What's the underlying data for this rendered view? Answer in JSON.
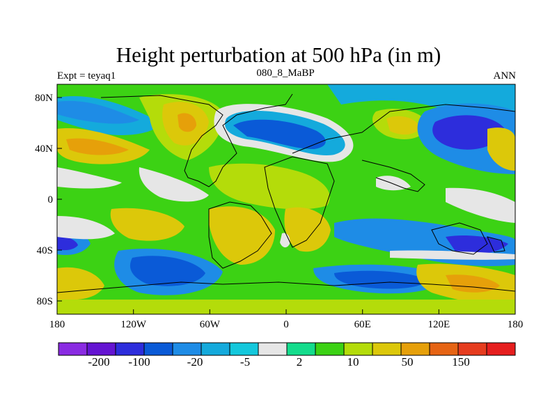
{
  "title": "Height perturbation at 500 hPa (in m)",
  "subtitle_left": "Expt = teyaq1",
  "subtitle_center": "080_8_MaBP",
  "subtitle_right": "ANN",
  "map": {
    "x_ticks": [
      "180",
      "120W",
      "60W",
      "0",
      "60E",
      "120E",
      "180"
    ],
    "y_ticks": [
      "80N",
      "40N",
      "0",
      "40S",
      "80S"
    ]
  },
  "colorbar": {
    "colors": [
      "#8a2be2",
      "#6414d2",
      "#2d2ddc",
      "#0a5ad7",
      "#1e8ce6",
      "#14aadc",
      "#14c8dc",
      "#e6e6e6",
      "#14dc8c",
      "#3cd214",
      "#b4dc0a",
      "#dcc80a",
      "#e6a00a",
      "#e66414",
      "#e63c1e",
      "#e61e1e"
    ],
    "labels": [
      "-200",
      "-100",
      "-20",
      "-5",
      "2",
      "10",
      "50",
      "150"
    ]
  }
}
